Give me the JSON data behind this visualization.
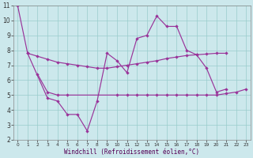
{
  "xlabel": "Windchill (Refroidissement éolien,°C)",
  "bg_color": "#cce8ec",
  "grid_color": "#99cccc",
  "line_color": "#993399",
  "xmin": 0,
  "xmax": 23,
  "ymin": 2,
  "ymax": 11,
  "line1_x": [
    0,
    1,
    3,
    4,
    5,
    6,
    7,
    8,
    9,
    10,
    11,
    12,
    13,
    14,
    15,
    16,
    17,
    18,
    19,
    20,
    21,
    22,
    23
  ],
  "line1_y": [
    11.0,
    7.8,
    4.8,
    4.6,
    3.7,
    3.7,
    2.6,
    4.6,
    7.8,
    7.3,
    6.5,
    8.8,
    9.0,
    10.3,
    9.6,
    9.6,
    8.0,
    7.7,
    6.8,
    5.2,
    5.4,
    null,
    null
  ],
  "line2_x": [
    1,
    2,
    3,
    4,
    5,
    6,
    7,
    8,
    9,
    10,
    11,
    12,
    13,
    14,
    15,
    16,
    17,
    18,
    19,
    20,
    21
  ],
  "line2_y": [
    7.8,
    7.6,
    7.4,
    7.2,
    7.1,
    7.0,
    6.9,
    6.8,
    6.8,
    6.9,
    7.0,
    7.1,
    7.2,
    7.3,
    7.45,
    7.55,
    7.65,
    7.7,
    7.75,
    7.8,
    7.8
  ],
  "line3_x": [
    2,
    3,
    4,
    5,
    10,
    11,
    12,
    13,
    14,
    15,
    16,
    17,
    18,
    19,
    20,
    21,
    22,
    23
  ],
  "line3_y": [
    6.4,
    5.2,
    5.0,
    5.0,
    5.0,
    5.0,
    5.0,
    5.0,
    5.0,
    5.0,
    5.0,
    5.0,
    5.0,
    5.0,
    5.0,
    5.1,
    5.2,
    5.4
  ]
}
